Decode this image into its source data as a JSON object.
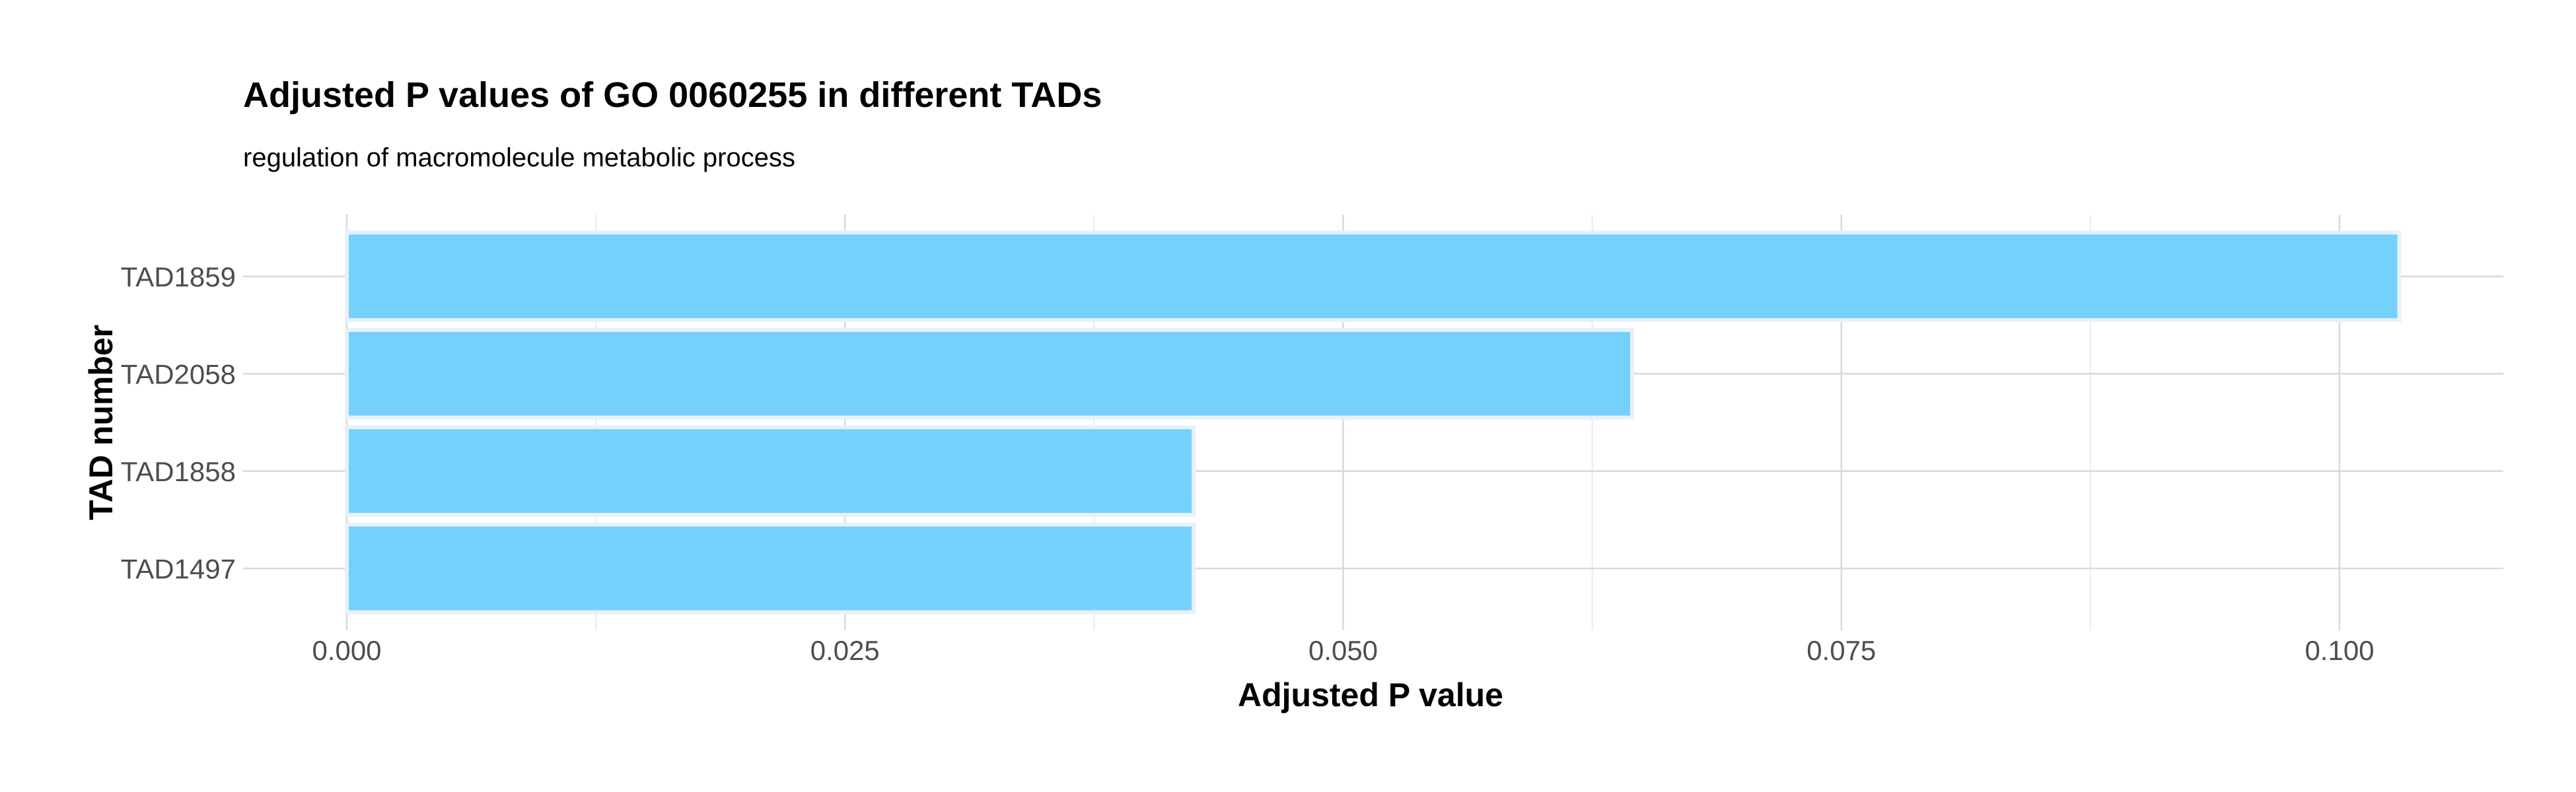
{
  "chart_data": {
    "type": "bar",
    "orientation": "horizontal",
    "title": "Adjusted P values of GO 0060255 in different TADs",
    "subtitle": "regulation of macromolecule metabolic process",
    "xlabel": "Adjusted P value",
    "ylabel": "TAD number",
    "categories": [
      "TAD1859",
      "TAD2058",
      "TAD1858",
      "TAD1497"
    ],
    "values": [
      0.103,
      0.0645,
      0.0425,
      0.0425
    ],
    "xlim": [
      0,
      0.108
    ],
    "x_ticks": [
      0.0,
      0.025,
      0.05,
      0.075,
      0.1
    ],
    "x_tick_labels": [
      "0.000",
      "0.025",
      "0.050",
      "0.075",
      "0.100"
    ],
    "grid": true,
    "legend": "none",
    "bar_color": "#73CFFC",
    "bar_outline_color": "#E8F1FA",
    "grid_major_color": "#D9D9D9",
    "grid_minor_color": "#EBEBEB"
  }
}
